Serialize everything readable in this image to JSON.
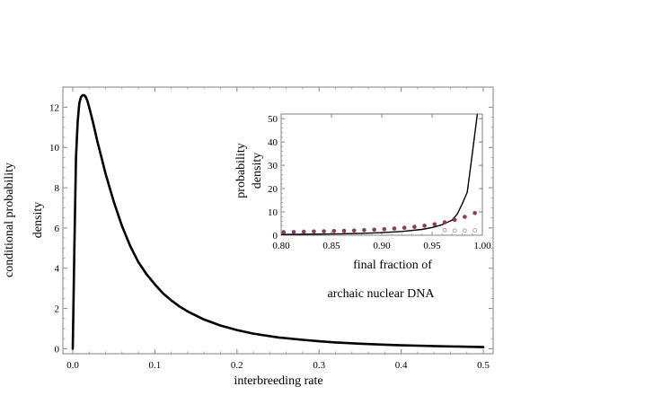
{
  "chart_data": [
    {
      "type": "line",
      "title": "",
      "xlabel": "interbreeding rate",
      "ylabel_lines": [
        "conditional probability",
        "density"
      ],
      "xlim": [
        -0.012,
        0.512
      ],
      "ylim": [
        -0.25,
        13.0
      ],
      "xticks": [
        0.0,
        0.1,
        0.2,
        0.3,
        0.4,
        0.5
      ],
      "xtick_labels": [
        "0.0",
        "0.1",
        "0.2",
        "0.3",
        "0.4",
        "0.5"
      ],
      "yticks": [
        0,
        2,
        4,
        6,
        8,
        10,
        12
      ],
      "ytick_labels": [
        "0",
        "2",
        "4",
        "6",
        "8",
        "10",
        "12"
      ],
      "grid": false,
      "series": [
        {
          "color": "#000000",
          "x": [
            0.0,
            0.002,
            0.004,
            0.006,
            0.008,
            0.01,
            0.012,
            0.014,
            0.016,
            0.018,
            0.02,
            0.025,
            0.03,
            0.035,
            0.04,
            0.045,
            0.05,
            0.06,
            0.07,
            0.08,
            0.09,
            0.1,
            0.11,
            0.12,
            0.13,
            0.14,
            0.15,
            0.16,
            0.18,
            0.2,
            0.22,
            0.25,
            0.28,
            0.3,
            0.32,
            0.35,
            0.38,
            0.4,
            0.42,
            0.45,
            0.48,
            0.5
          ],
          "y": [
            0.0,
            5.0,
            9.5,
            11.3,
            12.2,
            12.5,
            12.6,
            12.6,
            12.5,
            12.3,
            12.0,
            11.2,
            10.3,
            9.5,
            8.7,
            8.0,
            7.3,
            6.1,
            5.1,
            4.3,
            3.7,
            3.2,
            2.75,
            2.4,
            2.1,
            1.85,
            1.65,
            1.45,
            1.15,
            0.93,
            0.75,
            0.56,
            0.44,
            0.37,
            0.31,
            0.25,
            0.2,
            0.17,
            0.15,
            0.12,
            0.1,
            0.08
          ]
        }
      ]
    },
    {
      "type": "line",
      "title": "",
      "xlabel_lines": [
        "final fraction of",
        "archaic nuclear DNA"
      ],
      "ylabel_lines": [
        "probability",
        "density"
      ],
      "xlim": [
        0.8,
        1.0
      ],
      "ylim": [
        0,
        52
      ],
      "xticks": [
        0.8,
        0.85,
        0.9,
        0.95,
        1.0
      ],
      "xtick_labels": [
        "0.80",
        "0.85",
        "0.90",
        "0.95",
        "1.00"
      ],
      "yticks": [
        0,
        10,
        20,
        30,
        40,
        50
      ],
      "ytick_labels": [
        "0",
        "10",
        "20",
        "30",
        "40",
        "50"
      ],
      "grid": false,
      "series": [
        {
          "style": "line",
          "color": "#000000",
          "x": [
            0.8,
            0.82,
            0.84,
            0.86,
            0.88,
            0.9,
            0.92,
            0.94,
            0.95,
            0.96,
            0.97,
            0.975,
            0.98,
            0.985,
            0.99,
            0.995
          ],
          "y": [
            0.3,
            0.4,
            0.5,
            0.6,
            0.8,
            1.1,
            1.6,
            2.5,
            3.3,
            4.5,
            6.5,
            9.0,
            13.5,
            18.5,
            35.0,
            52.0
          ]
        },
        {
          "style": "filled-dots",
          "color": "#8b3a62",
          "x": [
            0.8025,
            0.8125,
            0.8225,
            0.8325,
            0.8425,
            0.8525,
            0.8625,
            0.8725,
            0.8825,
            0.8925,
            0.9025,
            0.9125,
            0.9225,
            0.9325,
            0.9425,
            0.9525,
            0.9625,
            0.9725,
            0.9825,
            0.9925
          ],
          "y": [
            1.3,
            1.4,
            1.5,
            1.6,
            1.7,
            1.8,
            1.9,
            2.0,
            2.2,
            2.4,
            2.6,
            2.9,
            3.2,
            3.6,
            4.1,
            4.7,
            5.5,
            6.6,
            7.9,
            9.5
          ]
        },
        {
          "style": "open-dots",
          "color": "#9a9a9a",
          "x": [
            0.9625,
            0.9725,
            0.9825,
            0.9925
          ],
          "y": [
            2.2,
            2.0,
            2.0,
            2.1
          ]
        }
      ]
    }
  ]
}
